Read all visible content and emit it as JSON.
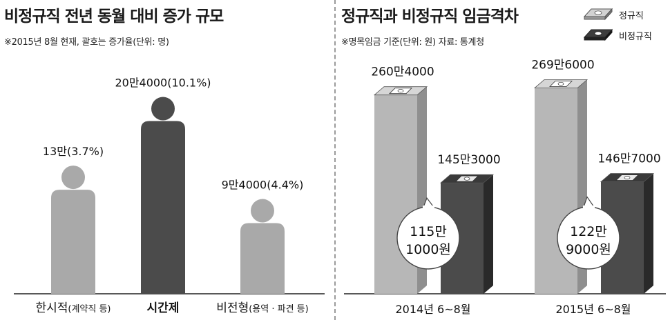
{
  "left": {
    "title": "비정규직 전년 동월 대비 증가 규모",
    "subtitle": "※2015년 8월 현재, 괄호는 증가율(단위: 명)"
  },
  "right": {
    "title": "정규직과 비정규직 임금격차",
    "subtitle": "※명목임금 기준(단위: 원) 자료: 통계청",
    "legend": [
      {
        "name": "정규직",
        "color": "#b7b7b7"
      },
      {
        "name": "비정규직",
        "color": "#4b4b4b"
      }
    ]
  },
  "chart_data": [
    {
      "type": "bar",
      "title": "비정규직 전년 동월 대비 증가 규모",
      "subtitle": "※2015년 8월 현재, 괄호는 증가율(단위: 명)",
      "categories": [
        "한시적(계약직 등)",
        "시간제",
        "비전형(용역 · 파견 등)"
      ],
      "category_main": [
        "한시적",
        "시간제",
        "비전형"
      ],
      "category_sub": [
        "(계약직 등)",
        "",
        "(용역 · 파견 등)"
      ],
      "values": [
        130000,
        204000,
        94000
      ],
      "growth_rate_pct": [
        3.7,
        10.1,
        4.4
      ],
      "data_labels": [
        "13만(3.7%)",
        "20만4000(10.1%)",
        "9만4000(4.4%)"
      ],
      "colors": [
        "#a9a9a9",
        "#4b4b4b",
        "#a9a9a9"
      ],
      "ylim": [
        0,
        220000
      ],
      "grid": false
    },
    {
      "type": "bar",
      "title": "정규직과 비정규직 임금격차",
      "subtitle": "※명목임금 기준(단위: 원) 자료: 통계청",
      "categories": [
        "2014년 6~8월",
        "2015년 6~8월"
      ],
      "series": [
        {
          "name": "정규직",
          "values": [
            2604000,
            2696000
          ],
          "labels": [
            "260만4000",
            "269만6000"
          ],
          "color": "#b7b7b7"
        },
        {
          "name": "비정규직",
          "values": [
            1453000,
            1467000
          ],
          "labels": [
            "145만3000",
            "146만7000"
          ],
          "color": "#4b4b4b"
        }
      ],
      "gap_values": [
        1151000,
        1229000
      ],
      "gap_labels": [
        [
          "115만",
          "1000원"
        ],
        [
          "122만",
          "9000원"
        ]
      ],
      "ylim": [
        0,
        2800000
      ],
      "legend": "top-right",
      "grid": false
    }
  ]
}
